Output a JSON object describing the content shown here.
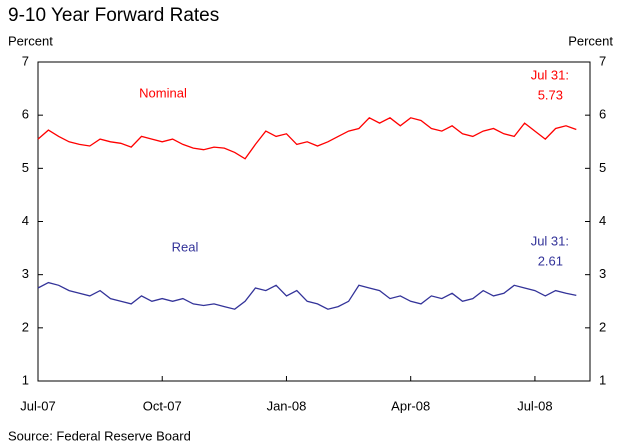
{
  "chart_data": {
    "type": "line",
    "title": "9-10 Year Forward Rates",
    "ylabel": "Percent",
    "y2label": "Percent",
    "source": "Source: Federal Reserve Board",
    "x": [
      0,
      0.25,
      0.5,
      0.75,
      1,
      1.25,
      1.5,
      1.75,
      2,
      2.25,
      2.5,
      2.75,
      3,
      3.25,
      3.5,
      3.75,
      4,
      4.25,
      4.5,
      4.75,
      5,
      5.25,
      5.5,
      5.75,
      6,
      6.25,
      6.5,
      6.75,
      7,
      7.25,
      7.5,
      7.75,
      8,
      8.25,
      8.5,
      8.75,
      9,
      9.25,
      9.5,
      9.75,
      10,
      10.25,
      10.5,
      10.75,
      11,
      11.25,
      11.5,
      11.75,
      12,
      12.25,
      12.5,
      12.75,
      13
    ],
    "series": [
      {
        "name": "Nominal",
        "color": "#ff0000",
        "values": [
          5.55,
          5.72,
          5.6,
          5.5,
          5.45,
          5.42,
          5.55,
          5.5,
          5.47,
          5.4,
          5.6,
          5.55,
          5.5,
          5.55,
          5.45,
          5.38,
          5.35,
          5.4,
          5.38,
          5.3,
          5.18,
          5.45,
          5.7,
          5.6,
          5.65,
          5.45,
          5.5,
          5.42,
          5.5,
          5.6,
          5.7,
          5.75,
          5.95,
          5.85,
          5.95,
          5.8,
          5.95,
          5.9,
          5.75,
          5.7,
          5.8,
          5.65,
          5.6,
          5.7,
          5.75,
          5.65,
          5.6,
          5.85,
          5.7,
          5.55,
          5.75,
          5.8,
          5.73
        ]
      },
      {
        "name": "Real",
        "color": "#333399",
        "values": [
          2.75,
          2.85,
          2.8,
          2.7,
          2.65,
          2.6,
          2.7,
          2.55,
          2.5,
          2.45,
          2.6,
          2.5,
          2.55,
          2.5,
          2.55,
          2.45,
          2.42,
          2.45,
          2.4,
          2.35,
          2.5,
          2.75,
          2.7,
          2.8,
          2.6,
          2.7,
          2.5,
          2.45,
          2.35,
          2.4,
          2.5,
          2.8,
          2.75,
          2.7,
          2.55,
          2.6,
          2.5,
          2.45,
          2.6,
          2.55,
          2.65,
          2.5,
          2.55,
          2.7,
          2.6,
          2.65,
          2.8,
          2.75,
          2.7,
          2.6,
          2.7,
          2.65,
          2.61
        ]
      }
    ],
    "annotations": [
      {
        "text": "Jul 31:"
      },
      {
        "text": "5.73"
      },
      {
        "text": "Jul 31:"
      },
      {
        "text": "2.61"
      }
    ],
    "xlim": [
      0,
      13.33
    ],
    "xticks": [
      {
        "value": 0,
        "label": "Jul-07"
      },
      {
        "value": 3,
        "label": "Oct-07"
      },
      {
        "value": 6,
        "label": "Jan-08"
      },
      {
        "value": 9,
        "label": "Apr-08"
      },
      {
        "value": 12,
        "label": "Jul-08"
      }
    ],
    "ylim": [
      1,
      7
    ],
    "yticks": [
      1,
      2,
      3,
      4,
      5,
      6,
      7
    ]
  }
}
